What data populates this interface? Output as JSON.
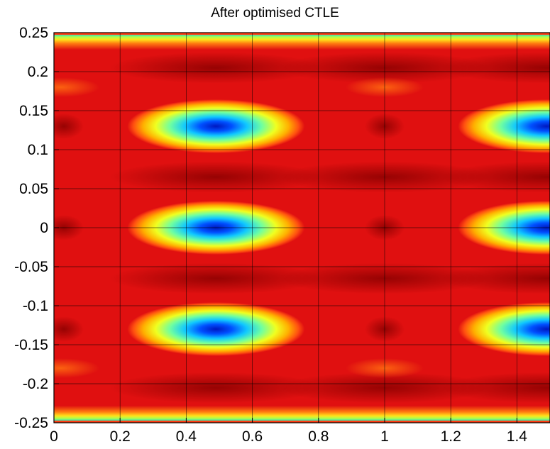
{
  "chart_data": {
    "type": "heatmap",
    "title": "After optimised CTLE",
    "xlabel": "",
    "ylabel": "",
    "xlim": [
      0,
      1.5
    ],
    "ylim": [
      -0.25,
      0.25
    ],
    "x_ticks": [
      0,
      0.2,
      0.4,
      0.6,
      0.8,
      1,
      1.2,
      1.4
    ],
    "x_tick_labels": [
      "0",
      "0.2",
      "0.4",
      "0.6",
      "0.8",
      "1",
      "1.2",
      "1.4"
    ],
    "y_ticks": [
      0.25,
      0.2,
      0.15,
      0.1,
      0.05,
      0,
      -0.05,
      -0.1,
      -0.15,
      -0.2,
      -0.25
    ],
    "y_tick_labels": [
      "0.25",
      "0.2",
      "0.15",
      "0.1",
      "0.05",
      "0",
      "-0.05",
      "-0.1",
      "-0.15",
      "-0.2",
      "-0.25"
    ],
    "grid": true,
    "colormap": "jet",
    "eye_openings": [
      {
        "x_center": 0.49,
        "y_center": 0.13
      },
      {
        "x_center": 0.49,
        "y_center": 0.0
      },
      {
        "x_center": 0.49,
        "y_center": -0.13
      },
      {
        "x_center": 1.49,
        "y_center": 0.13
      },
      {
        "x_center": 1.49,
        "y_center": 0.0
      },
      {
        "x_center": 1.49,
        "y_center": -0.13
      }
    ],
    "background_color": "#e01010"
  }
}
